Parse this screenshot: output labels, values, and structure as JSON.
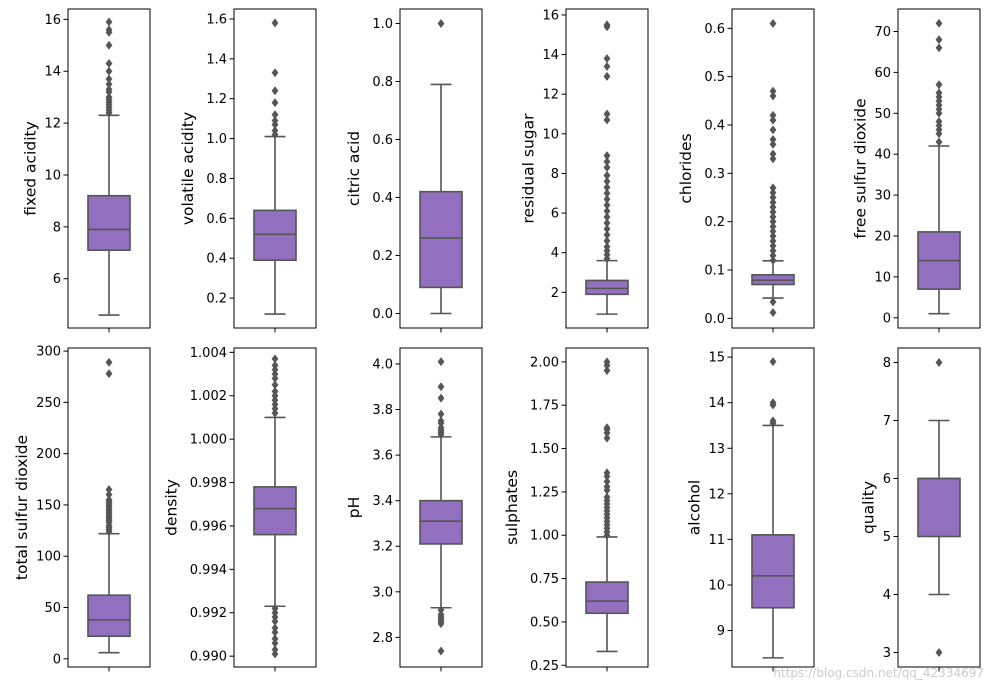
{
  "watermark": "https://blog.csdn.net/qq_42334697",
  "chart_data": [
    {
      "type": "box",
      "ylabel": "fixed acidity",
      "ylim": [
        4.1,
        16.4
      ],
      "ticks": [
        6,
        8,
        10,
        12,
        14,
        16
      ],
      "tick_labels": [
        "6",
        "8",
        "10",
        "12",
        "14",
        "16"
      ],
      "box": {
        "whisker_low": 4.6,
        "q1": 7.1,
        "median": 7.9,
        "q3": 9.2,
        "whisker_high": 12.3
      },
      "outliers": [
        12.4,
        12.5,
        12.6,
        12.7,
        12.8,
        12.9,
        13.0,
        13.2,
        13.3,
        13.5,
        13.7,
        14.0,
        14.3,
        15.0,
        15.5,
        15.6,
        15.9
      ]
    },
    {
      "type": "box",
      "ylabel": "volatile acidity",
      "ylim": [
        0.05,
        1.65
      ],
      "ticks": [
        0.2,
        0.4,
        0.6,
        0.8,
        1.0,
        1.2,
        1.4,
        1.6
      ],
      "tick_labels": [
        "0.2",
        "0.4",
        "0.6",
        "0.8",
        "1.0",
        "1.2",
        "1.4",
        "1.6"
      ],
      "box": {
        "whisker_low": 0.12,
        "q1": 0.39,
        "median": 0.52,
        "q3": 0.64,
        "whisker_high": 1.01
      },
      "outliers": [
        1.02,
        1.04,
        1.07,
        1.09,
        1.12,
        1.18,
        1.24,
        1.33,
        1.58
      ]
    },
    {
      "type": "box",
      "ylabel": "citric acid",
      "ylim": [
        -0.05,
        1.05
      ],
      "ticks": [
        0.0,
        0.2,
        0.4,
        0.6,
        0.8,
        1.0
      ],
      "tick_labels": [
        "0.0",
        "0.2",
        "0.4",
        "0.6",
        "0.8",
        "1.0"
      ],
      "box": {
        "whisker_low": 0.0,
        "q1": 0.09,
        "median": 0.26,
        "q3": 0.42,
        "whisker_high": 0.79
      },
      "outliers": [
        1.0
      ]
    },
    {
      "type": "box",
      "ylabel": "residual sugar",
      "ylim": [
        0.2,
        16.3
      ],
      "ticks": [
        2,
        4,
        6,
        8,
        10,
        12,
        14,
        16
      ],
      "tick_labels": [
        "2",
        "4",
        "6",
        "8",
        "10",
        "12",
        "14",
        "16"
      ],
      "box": {
        "whisker_low": 0.9,
        "q1": 1.9,
        "median": 2.2,
        "q3": 2.6,
        "whisker_high": 3.6
      },
      "outliers": [
        3.7,
        3.9,
        4.1,
        4.3,
        4.6,
        4.9,
        5.2,
        5.5,
        5.8,
        6.1,
        6.4,
        6.7,
        7.0,
        7.3,
        7.6,
        7.9,
        8.3,
        8.6,
        8.9,
        10.7,
        11.0,
        12.9,
        13.4,
        13.8,
        15.4,
        15.5
      ]
    },
    {
      "type": "box",
      "ylabel": "chlorides",
      "ylim": [
        -0.02,
        0.64
      ],
      "ticks": [
        0.0,
        0.1,
        0.2,
        0.3,
        0.4,
        0.5,
        0.6
      ],
      "tick_labels": [
        "0.0",
        "0.1",
        "0.2",
        "0.3",
        "0.4",
        "0.5",
        "0.6"
      ],
      "box": {
        "whisker_low": 0.042,
        "q1": 0.07,
        "median": 0.079,
        "q3": 0.09,
        "whisker_high": 0.119
      },
      "outliers": [
        0.012,
        0.034,
        0.12,
        0.13,
        0.14,
        0.15,
        0.16,
        0.17,
        0.18,
        0.19,
        0.2,
        0.21,
        0.22,
        0.23,
        0.24,
        0.25,
        0.26,
        0.27,
        0.33,
        0.34,
        0.36,
        0.37,
        0.39,
        0.41,
        0.42,
        0.46,
        0.47,
        0.61
      ]
    },
    {
      "type": "box",
      "ylabel": "free sulfur dioxide",
      "ylim": [
        -2.5,
        75.5
      ],
      "ticks": [
        0,
        10,
        20,
        30,
        40,
        50,
        60,
        70
      ],
      "tick_labels": [
        "0",
        "10",
        "20",
        "30",
        "40",
        "50",
        "60",
        "70"
      ],
      "box": {
        "whisker_low": 1,
        "q1": 7,
        "median": 14,
        "q3": 21,
        "whisker_high": 42
      },
      "outliers": [
        43,
        45,
        46,
        47,
        48,
        50,
        51,
        52,
        53,
        54,
        55,
        57,
        66,
        68,
        72
      ]
    },
    {
      "type": "box",
      "ylabel": "total sulfur dioxide",
      "ylim": [
        -8,
        303
      ],
      "ticks": [
        0,
        50,
        100,
        150,
        200,
        250,
        300
      ],
      "tick_labels": [
        "0",
        "50",
        "100",
        "150",
        "200",
        "250",
        "300"
      ],
      "box": {
        "whisker_low": 6,
        "q1": 22,
        "median": 38,
        "q3": 62,
        "whisker_high": 122
      },
      "outliers": [
        124,
        126,
        128,
        130,
        133,
        135,
        137,
        139,
        141,
        143,
        145,
        147,
        149,
        151,
        153,
        155,
        160,
        165,
        278,
        289
      ]
    },
    {
      "type": "box",
      "ylabel": "density",
      "ylim": [
        0.9895,
        1.0042
      ],
      "ticks": [
        0.99,
        0.992,
        0.994,
        0.996,
        0.998,
        1.0,
        1.002,
        1.004
      ],
      "tick_labels": [
        "0.990",
        "0.992",
        "0.994",
        "0.996",
        "0.998",
        "1.000",
        "1.002",
        "1.004"
      ],
      "box": {
        "whisker_low": 0.9923,
        "q1": 0.9956,
        "median": 0.9968,
        "q3": 0.9978,
        "whisker_high": 1.001
      },
      "outliers": [
        0.9901,
        0.9903,
        0.9906,
        0.9908,
        0.9911,
        0.9913,
        0.9916,
        0.9918,
        0.992,
        0.9922,
        1.0012,
        1.0014,
        1.0016,
        1.0018,
        1.002,
        1.0022,
        1.0025,
        1.0028,
        1.003,
        1.0032,
        1.0034,
        1.0037
      ]
    },
    {
      "type": "box",
      "ylabel": "pH",
      "ylim": [
        2.67,
        4.07
      ],
      "ticks": [
        2.8,
        3.0,
        3.2,
        3.4,
        3.6,
        3.8,
        4.0
      ],
      "tick_labels": [
        "2.8",
        "3.0",
        "3.2",
        "3.4",
        "3.6",
        "3.8",
        "4.0"
      ],
      "box": {
        "whisker_low": 2.93,
        "q1": 3.21,
        "median": 3.31,
        "q3": 3.4,
        "whisker_high": 3.68
      },
      "outliers": [
        2.74,
        2.86,
        2.87,
        2.88,
        2.89,
        2.9,
        2.92,
        3.69,
        3.7,
        3.71,
        3.72,
        3.74,
        3.75,
        3.78,
        3.85,
        3.9,
        4.01
      ]
    },
    {
      "type": "box",
      "ylabel": "sulphates",
      "ylim": [
        0.24,
        2.08
      ],
      "ticks": [
        0.25,
        0.5,
        0.75,
        1.0,
        1.25,
        1.5,
        1.75,
        2.0
      ],
      "tick_labels": [
        "0.25",
        "0.50",
        "0.75",
        "1.00",
        "1.25",
        "1.50",
        "1.75",
        "2.00"
      ],
      "box": {
        "whisker_low": 0.33,
        "q1": 0.55,
        "median": 0.62,
        "q3": 0.73,
        "whisker_high": 0.99
      },
      "outliers": [
        1.0,
        1.02,
        1.04,
        1.06,
        1.08,
        1.1,
        1.12,
        1.14,
        1.16,
        1.18,
        1.2,
        1.22,
        1.26,
        1.28,
        1.31,
        1.34,
        1.36,
        1.56,
        1.59,
        1.61,
        1.62,
        1.95,
        1.98,
        2.0
      ]
    },
    {
      "type": "box",
      "ylabel": "alcohol",
      "ylim": [
        8.2,
        15.2
      ],
      "ticks": [
        9,
        10,
        11,
        12,
        13,
        14,
        15
      ],
      "tick_labels": [
        "9",
        "10",
        "11",
        "12",
        "13",
        "14",
        "15"
      ],
      "box": {
        "whisker_low": 8.4,
        "q1": 9.5,
        "median": 10.2,
        "q3": 11.1,
        "whisker_high": 13.5
      },
      "outliers": [
        13.55,
        13.6,
        13.95,
        14.0,
        14.9
      ]
    },
    {
      "type": "box",
      "ylabel": "quality",
      "ylim": [
        2.75,
        8.25
      ],
      "ticks": [
        3,
        4,
        5,
        6,
        7,
        8
      ],
      "tick_labels": [
        "3",
        "4",
        "5",
        "6",
        "7",
        "8"
      ],
      "box": {
        "whisker_low": 4,
        "q1": 5,
        "median": 6,
        "q3": 6,
        "whisker_high": 7
      },
      "outliers": [
        3,
        8
      ]
    }
  ],
  "colors": {
    "box_fill": "#9370bf",
    "line": "#555555",
    "outlier": "#555555",
    "axes": "#000000"
  }
}
